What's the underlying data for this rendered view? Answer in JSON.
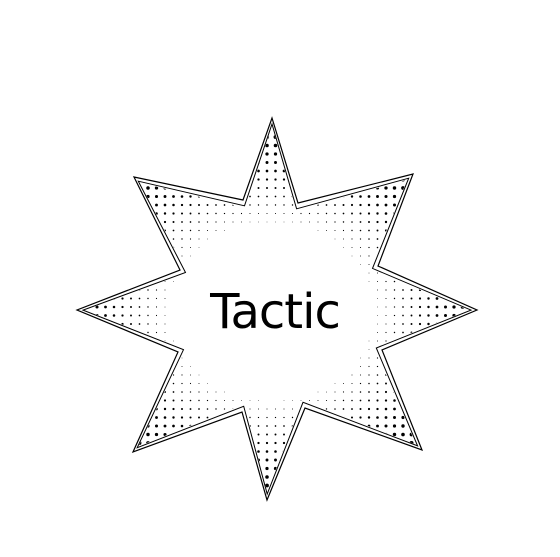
{
  "burst": {
    "word": "Tactic",
    "ink_color": "#000000",
    "paper_color": "#ffffff",
    "style": "halftone dots",
    "shape": "8-point star"
  }
}
